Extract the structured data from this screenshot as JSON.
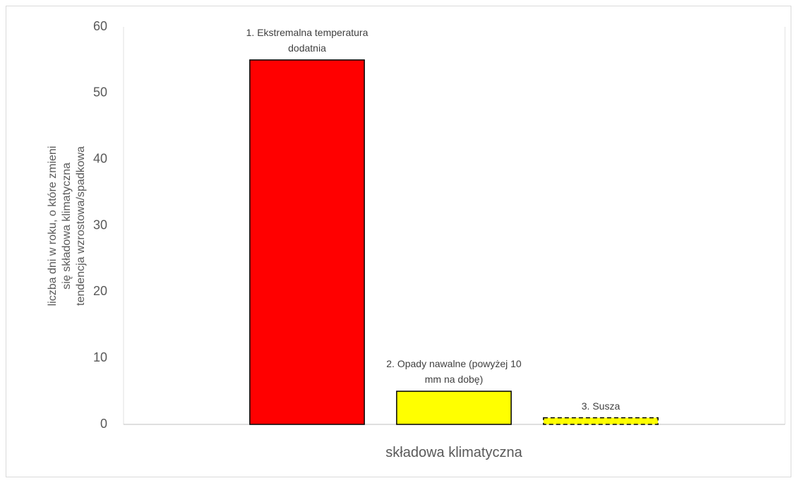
{
  "chart_data": {
    "type": "bar",
    "categories": [
      "1. Ekstremalna temperatura dodatnia",
      "2. Opady nawalne (powyżej 10 mm na dobę)",
      "3. Susza"
    ],
    "values": [
      55,
      5,
      1
    ],
    "colors": [
      "#ff0000",
      "#ffff00",
      "#ffff00"
    ],
    "edge_styles": [
      "solid",
      "solid",
      "dashed"
    ],
    "x_label": "składowa klimatyczna",
    "y_label": "liczba dni w roku, o które zmieni się składowa klimatyczna tendencja wzrostowa/spadkowa",
    "ylim": [
      0,
      60
    ],
    "yticks": [
      0,
      10,
      20,
      30,
      40,
      50,
      60
    ],
    "grid": false
  }
}
